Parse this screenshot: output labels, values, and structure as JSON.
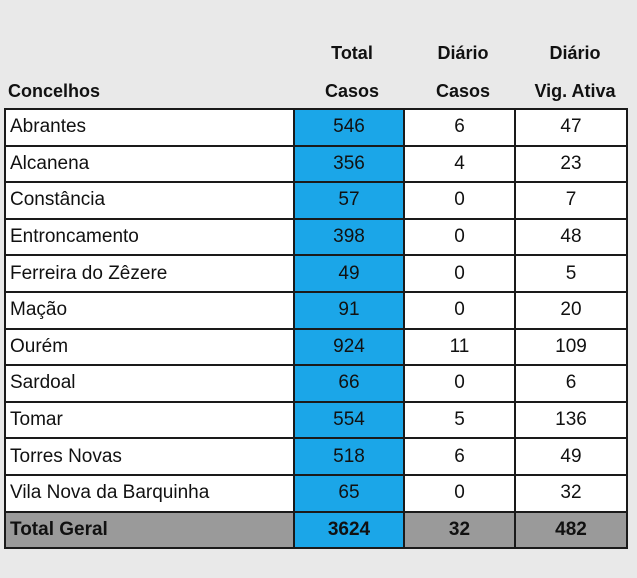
{
  "header": {
    "concelhos": "Concelhos",
    "total_line1": "Total",
    "total_line2": "Casos",
    "diario_casos_line1": "Diário",
    "diario_casos_line2": "Casos",
    "diario_vig_line1": "Diário",
    "diario_vig_line2": "Vig. Ativa"
  },
  "rows": [
    {
      "concelho": "Abrantes",
      "total": "546",
      "diario_casos": "6",
      "vig_ativa": "47"
    },
    {
      "concelho": "Alcanena",
      "total": "356",
      "diario_casos": "4",
      "vig_ativa": "23"
    },
    {
      "concelho": "Constância",
      "total": "57",
      "diario_casos": "0",
      "vig_ativa": "7"
    },
    {
      "concelho": "Entroncamento",
      "total": "398",
      "diario_casos": "0",
      "vig_ativa": "48"
    },
    {
      "concelho": "Ferreira do Zêzere",
      "total": "49",
      "diario_casos": "0",
      "vig_ativa": "5"
    },
    {
      "concelho": "Mação",
      "total": "91",
      "diario_casos": "0",
      "vig_ativa": "20"
    },
    {
      "concelho": "Ourém",
      "total": "924",
      "diario_casos": "11",
      "vig_ativa": "109"
    },
    {
      "concelho": "Sardoal",
      "total": "66",
      "diario_casos": "0",
      "vig_ativa": "6"
    },
    {
      "concelho": "Tomar",
      "total": "554",
      "diario_casos": "5",
      "vig_ativa": "136"
    },
    {
      "concelho": "Torres Novas",
      "total": "518",
      "diario_casos": "6",
      "vig_ativa": "49"
    },
    {
      "concelho": "Vila Nova da Barquinha",
      "total": "65",
      "diario_casos": "0",
      "vig_ativa": "32"
    }
  ],
  "footer": {
    "label": "Total Geral",
    "total": "3624",
    "diario_casos": "32",
    "vig_ativa": "482"
  },
  "colors": {
    "background": "#e9e9e9",
    "total_column": "#1ba6e8",
    "footer_row": "#9a9a9a",
    "border": "#1a1a1a"
  }
}
